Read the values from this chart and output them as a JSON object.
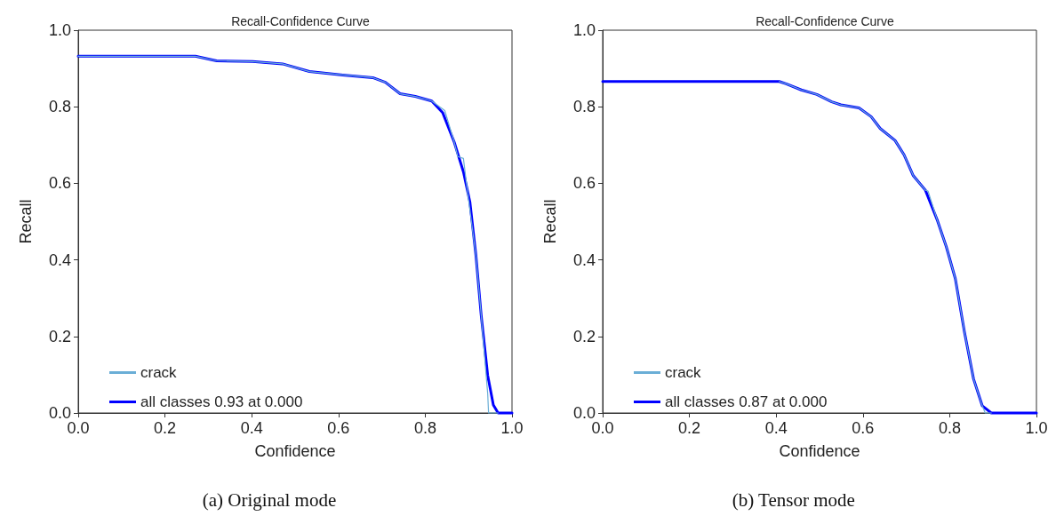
{
  "chart_data": [
    {
      "type": "line",
      "title": "Recall-Confidence Curve",
      "xlabel": "Confidence",
      "ylabel": "Recall",
      "annotations": [
        "(a) Original mode"
      ],
      "xlim": [
        0,
        1
      ],
      "ylim": [
        0,
        1
      ],
      "xticks": [
        {
          "value": 0,
          "label": "0.0"
        },
        {
          "value": 0.2,
          "label": "0.2"
        },
        {
          "value": 0.4,
          "label": "0.4"
        },
        {
          "value": 0.6,
          "label": "0.6"
        },
        {
          "value": 0.8,
          "label": "0.8"
        },
        {
          "value": 1,
          "label": "1.0"
        }
      ],
      "yticks": [
        {
          "value": 0,
          "label": "0.0"
        },
        {
          "value": 0.2,
          "label": "0.2"
        },
        {
          "value": 0.4,
          "label": "0.4"
        },
        {
          "value": 0.6,
          "label": "0.6"
        },
        {
          "value": 0.8,
          "label": "0.8"
        },
        {
          "value": 1,
          "label": "1.0"
        }
      ],
      "grid": false,
      "legend": "bottom left",
      "marker": "none",
      "line_style": "solid",
      "series": [
        {
          "name": "crack",
          "color": "#6aaed6",
          "x": [
            0,
            0.27,
            0.319,
            0.402,
            0.471,
            0.533,
            0.61,
            0.679,
            0.708,
            0.742,
            0.777,
            0.815,
            0.845,
            0.867,
            0.875,
            0.888,
            0.895,
            0.917,
            0.929,
            0.944,
            0.946,
            0.968
          ],
          "values": [
            0.932,
            0.932,
            0.92,
            0.918,
            0.912,
            0.892,
            0.883,
            0.876,
            0.864,
            0.834,
            0.827,
            0.815,
            0.79,
            0.707,
            0.67,
            0.665,
            0.6,
            0.41,
            0.255,
            0.05,
            0,
            0
          ]
        },
        {
          "name": "all classes 0.93 at 0.000",
          "color": "#0000ff",
          "x": [
            0,
            0.27,
            0.319,
            0.402,
            0.471,
            0.533,
            0.61,
            0.679,
            0.708,
            0.742,
            0.777,
            0.815,
            0.84,
            0.867,
            0.888,
            0.903,
            0.917,
            0.929,
            0.944,
            0.957,
            0.968,
            1
          ],
          "values": [
            0.932,
            0.932,
            0.92,
            0.918,
            0.912,
            0.892,
            0.883,
            0.876,
            0.864,
            0.834,
            0.827,
            0.815,
            0.785,
            0.707,
            0.63,
            0.551,
            0.41,
            0.255,
            0.098,
            0.021,
            0,
            0
          ]
        }
      ]
    },
    {
      "type": "line",
      "title": "Recall-Confidence Curve",
      "xlabel": "Confidence",
      "ylabel": "Recall",
      "annotations": [
        "(b) Tensor mode"
      ],
      "xlim": [
        0,
        1
      ],
      "ylim": [
        0,
        1
      ],
      "xticks": [
        {
          "value": 0,
          "label": "0.0"
        },
        {
          "value": 0.2,
          "label": "0.2"
        },
        {
          "value": 0.4,
          "label": "0.4"
        },
        {
          "value": 0.6,
          "label": "0.6"
        },
        {
          "value": 0.8,
          "label": "0.8"
        },
        {
          "value": 1,
          "label": "1.0"
        }
      ],
      "yticks": [
        {
          "value": 0,
          "label": "0.0"
        },
        {
          "value": 0.2,
          "label": "0.2"
        },
        {
          "value": 0.4,
          "label": "0.4"
        },
        {
          "value": 0.6,
          "label": "0.6"
        },
        {
          "value": 0.8,
          "label": "0.8"
        },
        {
          "value": 1,
          "label": "1.0"
        }
      ],
      "grid": false,
      "legend": "bottom left",
      "marker": "none",
      "line_style": "solid",
      "series": [
        {
          "name": "crack",
          "color": "#6aaed6",
          "x": [
            0.407,
            0.423,
            0.458,
            0.494,
            0.528,
            0.549,
            0.591,
            0.619,
            0.64,
            0.674,
            0.695,
            0.716,
            0.744,
            0.75,
            0.771,
            0.792,
            0.813,
            0.834,
            0.855,
            0.875,
            0.882,
            0.896
          ],
          "values": [
            0.866,
            0.86,
            0.844,
            0.832,
            0.813,
            0.805,
            0.797,
            0.774,
            0.743,
            0.712,
            0.674,
            0.62,
            0.582,
            0.58,
            0.505,
            0.435,
            0.351,
            0.212,
            0.089,
            0.019,
            0,
            0
          ]
        },
        {
          "name": "all classes 0.87 at 0.000",
          "color": "#0000ff",
          "x": [
            0,
            0.407,
            0.423,
            0.458,
            0.494,
            0.528,
            0.549,
            0.591,
            0.619,
            0.64,
            0.674,
            0.695,
            0.716,
            0.744,
            0.771,
            0.792,
            0.813,
            0.834,
            0.855,
            0.875,
            0.896,
            1
          ],
          "values": [
            0.866,
            0.866,
            0.86,
            0.844,
            0.832,
            0.813,
            0.805,
            0.797,
            0.774,
            0.743,
            0.712,
            0.674,
            0.62,
            0.582,
            0.505,
            0.435,
            0.351,
            0.212,
            0.089,
            0.019,
            0,
            0
          ]
        }
      ]
    }
  ]
}
